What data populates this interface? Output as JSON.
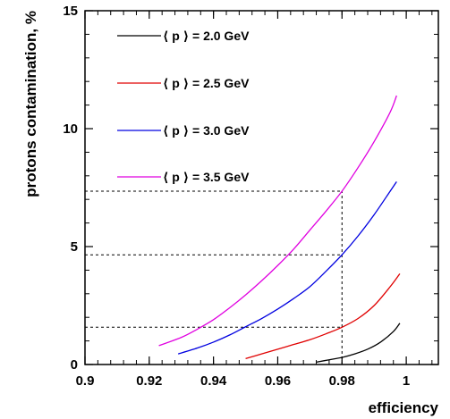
{
  "chart_data": {
    "type": "line",
    "xlabel": "efficiency",
    "ylabel": "protons contamination, %",
    "xlim": [
      0.9,
      1.01
    ],
    "ylim": [
      0,
      15
    ],
    "xticks": [
      0.9,
      0.92,
      0.94,
      0.96,
      0.98,
      1
    ],
    "xtick_labels": [
      "0.9",
      "0.92",
      "0.94",
      "0.96",
      "0.98",
      "1"
    ],
    "yticks": [
      0,
      5,
      10,
      15
    ],
    "ytick_labels": [
      "0",
      "5",
      "10",
      "15"
    ],
    "grid": false,
    "legend_placement": "top-left",
    "series": [
      {
        "name": "⟨ p ⟩ = 2.0 GeV",
        "color": "#000000",
        "x": [
          0.972,
          0.976,
          0.98,
          0.984,
          0.988,
          0.992,
          0.996,
          0.998
        ],
        "y": [
          0.1,
          0.2,
          0.3,
          0.45,
          0.65,
          0.95,
          1.4,
          1.75
        ]
      },
      {
        "name": "⟨ p ⟩ = 2.5 GeV",
        "color": "#e00000",
        "x": [
          0.95,
          0.955,
          0.96,
          0.965,
          0.97,
          0.975,
          0.98,
          0.985,
          0.99,
          0.995,
          0.998
        ],
        "y": [
          0.25,
          0.45,
          0.65,
          0.85,
          1.05,
          1.3,
          1.58,
          1.95,
          2.5,
          3.3,
          3.85
        ]
      },
      {
        "name": "⟨ p ⟩ = 3.0 GeV",
        "color": "#0000e0",
        "x": [
          0.929,
          0.935,
          0.94,
          0.945,
          0.95,
          0.955,
          0.96,
          0.965,
          0.97,
          0.975,
          0.98,
          0.985,
          0.99,
          0.995,
          0.997
        ],
        "y": [
          0.45,
          0.7,
          0.95,
          1.25,
          1.6,
          1.95,
          2.35,
          2.8,
          3.3,
          3.95,
          4.65,
          5.45,
          6.35,
          7.35,
          7.75
        ]
      },
      {
        "name": "⟨ p ⟩ = 3.5 GeV",
        "color": "#e000e0",
        "x": [
          0.923,
          0.93,
          0.935,
          0.94,
          0.945,
          0.95,
          0.955,
          0.96,
          0.965,
          0.97,
          0.975,
          0.98,
          0.985,
          0.99,
          0.995,
          0.997
        ],
        "y": [
          0.8,
          1.15,
          1.5,
          1.9,
          2.4,
          2.95,
          3.55,
          4.2,
          4.9,
          5.7,
          6.5,
          7.35,
          8.35,
          9.45,
          10.7,
          11.4
        ]
      }
    ],
    "reference_lines": {
      "x_cut": 0.98,
      "y_levels": [
        1.58,
        4.65,
        7.35
      ]
    }
  }
}
